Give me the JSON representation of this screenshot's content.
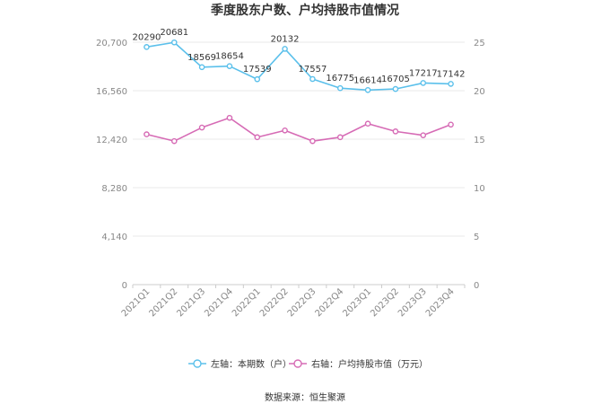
{
  "chart_data": {
    "type": "line",
    "title": "季度股东户数、户均持股市值情况",
    "categories": [
      "2021Q1",
      "2021Q2",
      "2021Q3",
      "2021Q4",
      "2022Q1",
      "2022Q2",
      "2022Q3",
      "2022Q4",
      "2023Q1",
      "2023Q2",
      "2023Q3",
      "2023Q4"
    ],
    "left_axis": {
      "ylim": [
        0,
        20700
      ],
      "ticks": [
        0,
        4140,
        8280,
        12420,
        16560,
        20700
      ],
      "tick_labels": [
        "0",
        "4,140",
        "8,280",
        "12,420",
        "16,560",
        "20,700"
      ]
    },
    "right_axis": {
      "ylim": [
        0,
        25
      ],
      "ticks": [
        0,
        5,
        10,
        15,
        20,
        25
      ],
      "tick_labels": [
        "0",
        "5",
        "10",
        "15",
        "20",
        "25"
      ]
    },
    "series": [
      {
        "name": "左轴：本期数（户）",
        "axis": "left",
        "color": "#5bc0eb",
        "values": [
          20290,
          20681,
          18569,
          18654,
          17539,
          20132,
          17557,
          16775,
          16614,
          16705,
          17217,
          17142
        ],
        "data_labels": [
          "20290",
          "20681",
          "18569",
          "18654",
          "17539",
          "20132",
          "17557",
          "16775",
          "16614",
          "16705",
          "17217",
          "17142"
        ]
      },
      {
        "name": "右轴：户均持股市值（万元）",
        "axis": "right",
        "color": "#d66bb5",
        "values": [
          15.5,
          14.8,
          16.2,
          17.2,
          15.2,
          15.9,
          14.8,
          15.2,
          16.6,
          15.8,
          15.4,
          16.5
        ]
      }
    ],
    "legend_position": "bottom-center",
    "grid": true,
    "source": "数据来源：恒生聚源"
  }
}
